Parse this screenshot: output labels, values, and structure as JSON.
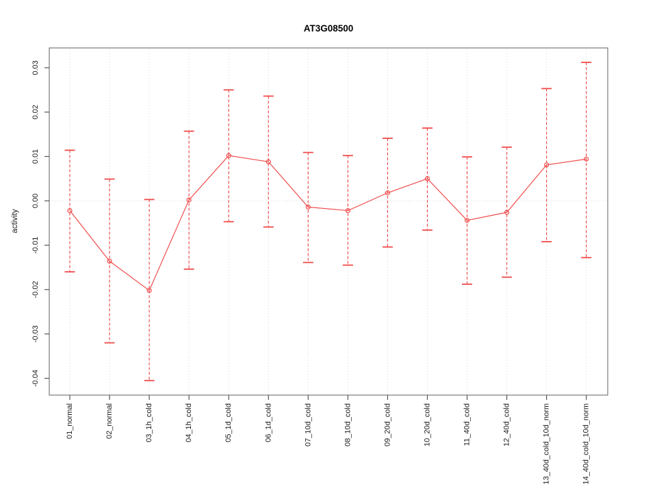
{
  "figure": {
    "title": "AT3G08500",
    "ylabel": "activity"
  },
  "chart_data": {
    "type": "line",
    "title": "AT3G08500",
    "xlabel": "",
    "ylabel": "activity",
    "categories": [
      "01_normal",
      "02_normal",
      "03_1h_cold",
      "04_1h_cold",
      "05_1d_cold",
      "06_1d_cold",
      "07_10d_cold",
      "08_10d_cold",
      "09_20d_cold",
      "10_20d_cold",
      "11_40d_cold",
      "12_40d_cold",
      "13_40d_cold_10d_norm",
      "14_40d_cold_10d_norm"
    ],
    "series": [
      {
        "name": "activity",
        "marker": "open-circle",
        "values": [
          -0.0022,
          -0.0136,
          -0.0202,
          0.0002,
          0.0102,
          0.0088,
          -0.0014,
          -0.0022,
          0.0018,
          0.005,
          -0.0044,
          -0.0026,
          0.0081,
          0.0094
        ],
        "ci_lower": [
          -0.016,
          -0.032,
          -0.0405,
          -0.0154,
          -0.0047,
          -0.0059,
          -0.0139,
          -0.0145,
          -0.0104,
          -0.0066,
          -0.0188,
          -0.0172,
          -0.0092,
          -0.0128
        ],
        "ci_upper": [
          0.0114,
          0.0049,
          0.0003,
          0.0157,
          0.025,
          0.0236,
          0.0109,
          0.0102,
          0.0141,
          0.0164,
          0.0099,
          0.0121,
          0.0253,
          0.0312
        ]
      }
    ],
    "y_ticks": [
      {
        "label": "0.03",
        "value": 0.03
      },
      {
        "label": "0.02",
        "value": 0.02
      },
      {
        "label": "0.01",
        "value": 0.01
      },
      {
        "label": "0.00",
        "value": 0.0
      },
      {
        "label": "-0.01",
        "value": -0.01
      },
      {
        "label": "-0.02",
        "value": -0.02
      },
      {
        "label": "-0.03",
        "value": -0.03
      },
      {
        "label": "-0.04",
        "value": -0.04
      }
    ],
    "ylim": [
      -0.0438,
      0.0345
    ],
    "grid": "dotted vertical gridline at each category plus dotted horizontal line at y=0",
    "legend": "none",
    "error_bar_style": "dashed vertical line with solid horizontal caps",
    "colors": {
      "series": "#f04c4c",
      "grid": "#d6d6d6",
      "axis": "#777777",
      "tick": "#555555",
      "text": "#1a1a1a",
      "background": "#ffffff"
    }
  }
}
